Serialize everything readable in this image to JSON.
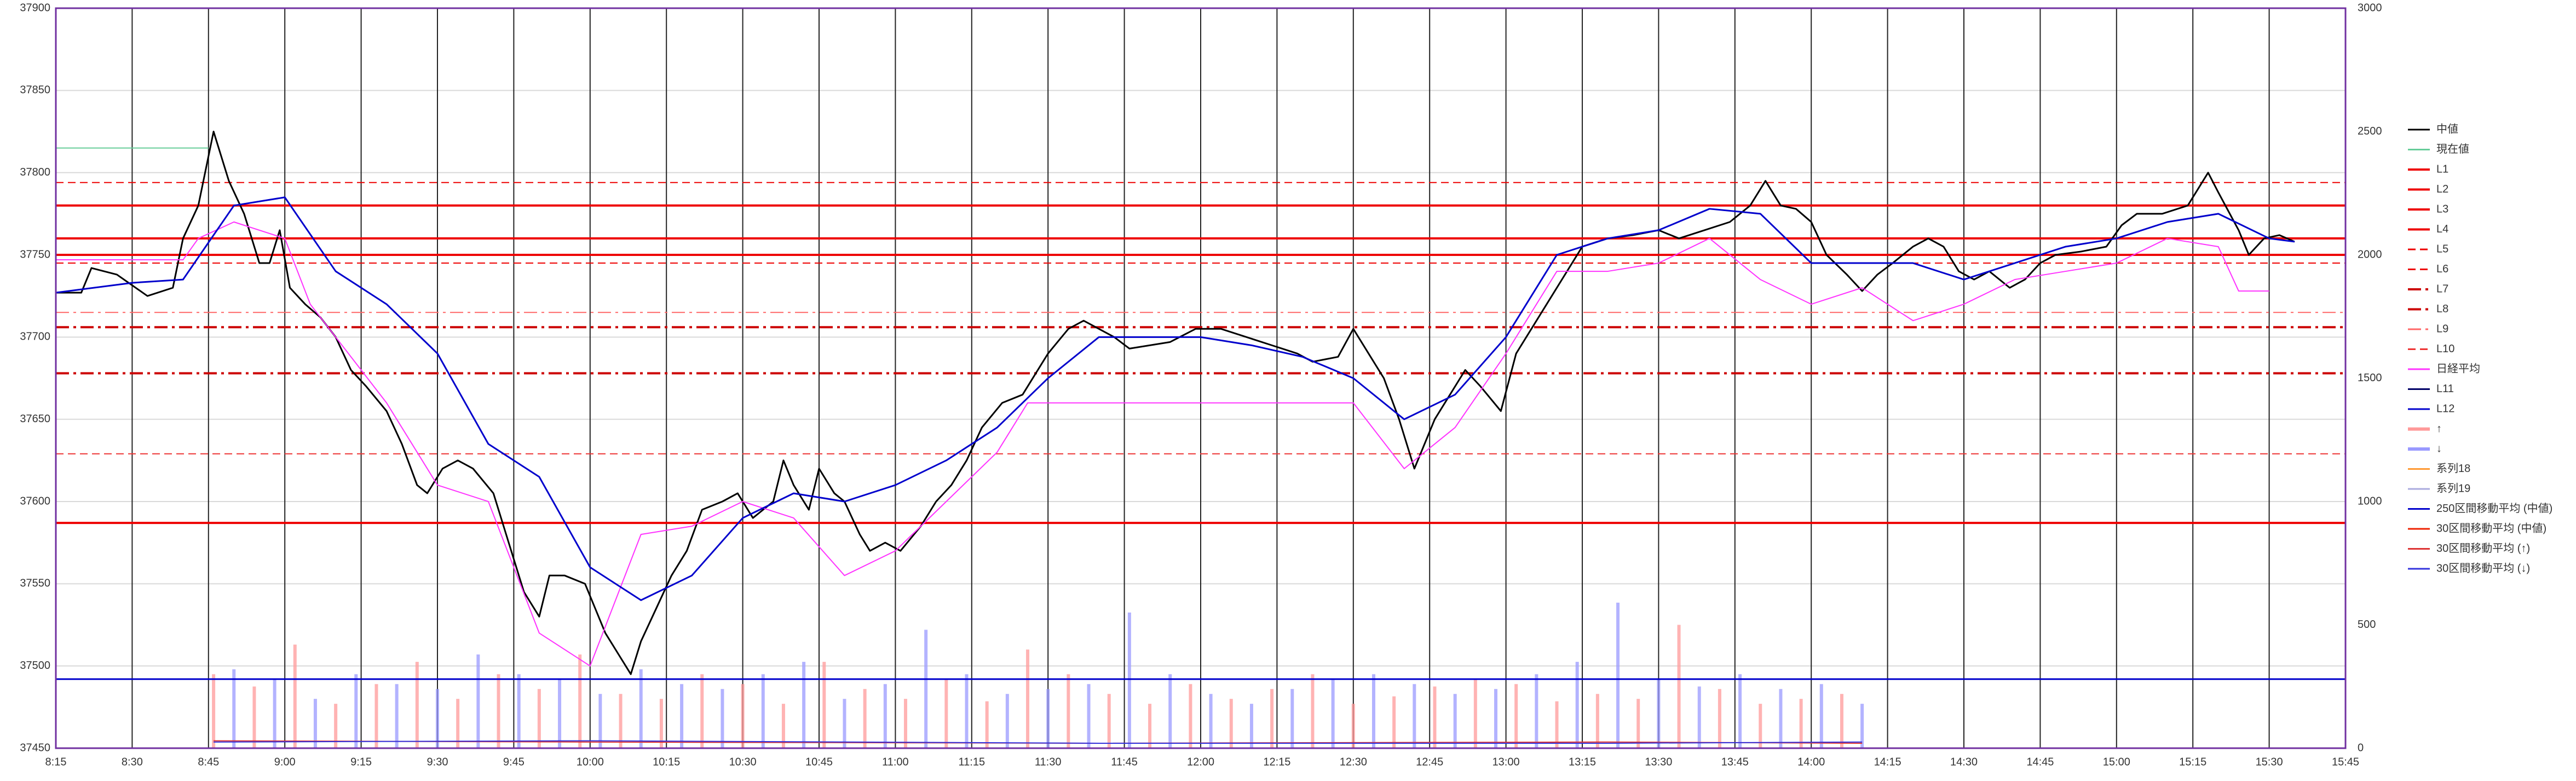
{
  "chart_data": {
    "type": "line",
    "xlim": [
      495,
      945
    ],
    "xticks": [
      {
        "value": 495,
        "label": "8:15"
      },
      {
        "value": 510,
        "label": "8:30"
      },
      {
        "value": 525,
        "label": "8:45"
      },
      {
        "value": 540,
        "label": "9:00"
      },
      {
        "value": 555,
        "label": "9:15"
      },
      {
        "value": 570,
        "label": "9:30"
      },
      {
        "value": 585,
        "label": "9:45"
      },
      {
        "value": 600,
        "label": "10:00"
      },
      {
        "value": 615,
        "label": "10:15"
      },
      {
        "value": 630,
        "label": "10:30"
      },
      {
        "value": 645,
        "label": "10:45"
      },
      {
        "value": 660,
        "label": "11:00"
      },
      {
        "value": 675,
        "label": "11:15"
      },
      {
        "value": 690,
        "label": "11:30"
      },
      {
        "value": 705,
        "label": "11:45"
      },
      {
        "value": 720,
        "label": "12:00"
      },
      {
        "value": 735,
        "label": "12:15"
      },
      {
        "value": 750,
        "label": "12:30"
      },
      {
        "value": 765,
        "label": "12:45"
      },
      {
        "value": 780,
        "label": "13:00"
      },
      {
        "value": 795,
        "label": "13:15"
      },
      {
        "value": 810,
        "label": "13:30"
      },
      {
        "value": 825,
        "label": "13:45"
      },
      {
        "value": 840,
        "label": "14:00"
      },
      {
        "value": 855,
        "label": "14:15"
      },
      {
        "value": 870,
        "label": "14:30"
      },
      {
        "value": 885,
        "label": "14:45"
      },
      {
        "value": 900,
        "label": "15:00"
      },
      {
        "value": 915,
        "label": "15:15"
      },
      {
        "value": 930,
        "label": "15:30"
      },
      {
        "value": 945,
        "label": "15:45"
      }
    ],
    "ylim": [
      37450,
      37900
    ],
    "yticks": [
      37450,
      37500,
      37550,
      37600,
      37650,
      37700,
      37750,
      37800,
      37850,
      37900
    ],
    "y2lim": [
      0,
      3000
    ],
    "y2ticks": [
      0,
      500,
      1000,
      1500,
      2000,
      2500,
      3000
    ],
    "grid": true,
    "legend": "right",
    "series": [
      {
        "name": "中値",
        "kind": "line",
        "color": "#000000",
        "width": 3,
        "style": "solid",
        "x": [
          495,
          500,
          502,
          507,
          513,
          518,
          520,
          523,
          526,
          529,
          532,
          535,
          537,
          539,
          541,
          544,
          547,
          550,
          553,
          556,
          560,
          563,
          566,
          568,
          571,
          574,
          577,
          581,
          585,
          587,
          590,
          592,
          595,
          599,
          601,
          603,
          606,
          608,
          610,
          613,
          616,
          619,
          622,
          626,
          629,
          632,
          636,
          638,
          640,
          643,
          645,
          648,
          650,
          653,
          655,
          658,
          661,
          665,
          668,
          671,
          674,
          677,
          681,
          685,
          688,
          690,
          694,
          697,
          700,
          703,
          706,
          710,
          714,
          719,
          724,
          729,
          734,
          739,
          742,
          747,
          750,
          753,
          756,
          759,
          762,
          766,
          769,
          772,
          775,
          779,
          782,
          785,
          789,
          792,
          795,
          800,
          805,
          810,
          814,
          819,
          824,
          828,
          831,
          834,
          837,
          840,
          843,
          847,
          850,
          853,
          856,
          860,
          863,
          866,
          869,
          872,
          875,
          879,
          882,
          885,
          888,
          893,
          898,
          901,
          904,
          909,
          914,
          918,
          920,
          924,
          926,
          929,
          932,
          935
        ],
        "values": [
          37727,
          37727,
          37742,
          37738,
          37725,
          37730,
          37760,
          37780,
          37825,
          37795,
          37775,
          37745,
          37745,
          37765,
          37730,
          37720,
          37712,
          37700,
          37680,
          37670,
          37655,
          37635,
          37610,
          37605,
          37620,
          37625,
          37620,
          37605,
          37565,
          37545,
          37530,
          37555,
          37555,
          37550,
          37535,
          37520,
          37505,
          37495,
          37515,
          37535,
          37555,
          37570,
          37595,
          37600,
          37605,
          37590,
          37600,
          37625,
          37610,
          37595,
          37620,
          37605,
          37600,
          37580,
          37570,
          37575,
          37570,
          37585,
          37600,
          37610,
          37625,
          37645,
          37660,
          37665,
          37680,
          37690,
          37705,
          37710,
          37705,
          37700,
          37693,
          37695,
          37697,
          37705,
          37705,
          37700,
          37695,
          37690,
          37685,
          37688,
          37705,
          37690,
          37675,
          37650,
          37620,
          37650,
          37665,
          37680,
          37670,
          37655,
          37690,
          37705,
          37725,
          37740,
          37755,
          37760,
          37762,
          37765,
          37760,
          37765,
          37770,
          37780,
          37795,
          37780,
          37778,
          37770,
          37750,
          37738,
          37728,
          37738,
          37745,
          37755,
          37760,
          37755,
          37740,
          37735,
          37740,
          37730,
          37735,
          37745,
          37750,
          37752,
          37755,
          37768,
          37775,
          37775,
          37780,
          37800,
          37788,
          37765,
          37750,
          37760,
          37762,
          37758
        ]
      },
      {
        "name": "現在値",
        "kind": "line",
        "color": "#66cc99",
        "width": 2,
        "style": "solid",
        "x": [
          495,
          525
        ],
        "values": [
          37815,
          37815
        ]
      },
      {
        "name": "L1",
        "kind": "hline",
        "color": "#ee0000",
        "width": 4,
        "style": "solid",
        "value": 37780
      },
      {
        "name": "L2",
        "kind": "hline",
        "color": "#ee0000",
        "width": 4,
        "style": "solid",
        "value": 37760
      },
      {
        "name": "L3",
        "kind": "hline",
        "color": "#ee0000",
        "width": 4,
        "style": "solid",
        "value": 37750
      },
      {
        "name": "L4",
        "kind": "hline",
        "color": "#ee0000",
        "width": 4,
        "style": "solid",
        "value": 37587
      },
      {
        "name": "L5",
        "kind": "hline",
        "color": "#ee0000",
        "width": 2,
        "style": "dashed",
        "value": 37794
      },
      {
        "name": "L6",
        "kind": "hline",
        "color": "#ee0000",
        "width": 2,
        "style": "dashed",
        "value": 37745
      },
      {
        "name": "L7",
        "kind": "hline",
        "color": "#cc0000",
        "width": 4,
        "style": "dashdot",
        "value": 37706
      },
      {
        "name": "L8",
        "kind": "hline",
        "color": "#cc0000",
        "width": 4,
        "style": "dashdot",
        "value": 37678
      },
      {
        "name": "L9",
        "kind": "hline",
        "color": "#ff6666",
        "width": 2,
        "style": "dashdot",
        "value": 37715
      },
      {
        "name": "L10",
        "kind": "hline",
        "color": "#ee3333",
        "width": 2,
        "style": "dashed",
        "value": 37629
      },
      {
        "name": "日経平均",
        "kind": "line",
        "color": "#ff33ff",
        "width": 2,
        "style": "solid",
        "x": [
          495,
          520,
          523,
          530,
          540,
          545,
          550,
          560,
          570,
          580,
          590,
          600,
          610,
          620,
          630,
          640,
          650,
          660,
          670,
          680,
          685,
          686,
          700,
          720,
          740,
          750,
          760,
          770,
          780,
          790,
          800,
          810,
          820,
          830,
          840,
          850,
          860,
          870,
          880,
          890,
          900,
          910,
          920,
          924,
          930
        ],
        "values": [
          37747,
          37747,
          37760,
          37770,
          37760,
          37720,
          37700,
          37660,
          37610,
          37600,
          37520,
          37500,
          37580,
          37585,
          37600,
          37590,
          37555,
          37570,
          37600,
          37630,
          37655,
          37660,
          37660,
          37660,
          37660,
          37660,
          37620,
          37645,
          37690,
          37740,
          37740,
          37745,
          37760,
          37735,
          37720,
          37730,
          37710,
          37720,
          37735,
          37740,
          37745,
          37760,
          37755,
          37728,
          37728
        ]
      },
      {
        "name": "L11",
        "kind": "hline",
        "color": "#000066",
        "width": 3,
        "style": "solid",
        "value": null
      },
      {
        "name": "L12",
        "kind": "hline",
        "color": "#0000cc",
        "width": 3,
        "style": "solid",
        "value": 37492
      },
      {
        "name": "↑",
        "kind": "bar",
        "axis": "y2",
        "color": "#ff9999",
        "width": 6,
        "style": "solid",
        "x": [
          526,
          534,
          542,
          550,
          558,
          566,
          574,
          582,
          590,
          598,
          606,
          614,
          622,
          630,
          638,
          646,
          654,
          662,
          670,
          678,
          686,
          694,
          702,
          710,
          718,
          726,
          734,
          742,
          750,
          758,
          766,
          774,
          782,
          790,
          798,
          806,
          814,
          822,
          830,
          838,
          846
        ],
        "values": [
          300,
          250,
          420,
          180,
          260,
          350,
          200,
          300,
          240,
          380,
          220,
          200,
          300,
          260,
          180,
          350,
          240,
          200,
          280,
          190,
          400,
          300,
          220,
          180,
          260,
          200,
          240,
          300,
          180,
          210,
          250,
          280,
          260,
          190,
          220,
          200,
          500,
          240,
          180,
          200,
          220
        ]
      },
      {
        "name": "↓",
        "kind": "bar",
        "axis": "y2",
        "color": "#9999ff",
        "width": 6,
        "style": "solid",
        "x": [
          530,
          538,
          546,
          554,
          562,
          570,
          578,
          586,
          594,
          602,
          610,
          618,
          626,
          634,
          642,
          650,
          658,
          666,
          674,
          682,
          690,
          698,
          706,
          714,
          722,
          730,
          738,
          746,
          754,
          762,
          770,
          778,
          786,
          794,
          802,
          810,
          818,
          826,
          834,
          842,
          850
        ],
        "values": [
          320,
          280,
          200,
          300,
          260,
          240,
          380,
          300,
          280,
          220,
          320,
          260,
          240,
          300,
          350,
          200,
          260,
          480,
          300,
          220,
          240,
          260,
          550,
          300,
          220,
          180,
          240,
          280,
          300,
          260,
          220,
          240,
          300,
          350,
          590,
          280,
          250,
          300,
          240,
          260,
          180
        ]
      },
      {
        "name": "系列18",
        "kind": "line",
        "color": "#ff9933",
        "width": 2,
        "style": "solid",
        "x": [],
        "values": []
      },
      {
        "name": "系列19",
        "kind": "line",
        "color": "#aaaadd",
        "width": 2,
        "style": "solid",
        "x": [],
        "values": []
      },
      {
        "name": "250区間移動平均 (中値)",
        "kind": "line",
        "color": "#0000cc",
        "width": 3,
        "style": "solid",
        "x": [
          495,
          510,
          520,
          530,
          540,
          550,
          560,
          570,
          580,
          590,
          600,
          610,
          620,
          630,
          640,
          650,
          660,
          670,
          680,
          690,
          700,
          710,
          720,
          730,
          740,
          750,
          760,
          770,
          780,
          790,
          800,
          810,
          820,
          830,
          840,
          850,
          860,
          870,
          880,
          890,
          900,
          910,
          920,
          930,
          935
        ],
        "values": [
          37727,
          37733,
          37735,
          37780,
          37785,
          37740,
          37720,
          37690,
          37635,
          37615,
          37560,
          37540,
          37555,
          37590,
          37605,
          37600,
          37610,
          37625,
          37645,
          37675,
          37700,
          37700,
          37700,
          37695,
          37688,
          37675,
          37650,
          37665,
          37700,
          37750,
          37760,
          37765,
          37778,
          37775,
          37745,
          37745,
          37745,
          37735,
          37745,
          37755,
          37760,
          37770,
          37775,
          37760,
          37758
        ]
      },
      {
        "name": "30区間移動平均 (中値)",
        "kind": "line",
        "color": "#ee2200",
        "width": 2,
        "style": "solid",
        "x": [],
        "values": []
      },
      {
        "name": "30区間移動平均 (↑)",
        "kind": "line",
        "axis": "y2",
        "color": "#dd3333",
        "width": 2,
        "style": "solid",
        "x": [
          526,
          600,
          700,
          800,
          850
        ],
        "values": [
          30,
          25,
          20,
          25,
          20
        ]
      },
      {
        "name": "30区間移動平均 (↓)",
        "kind": "line",
        "axis": "y2",
        "color": "#3333dd",
        "width": 2,
        "style": "solid",
        "x": [
          526,
          600,
          700,
          800,
          850
        ],
        "values": [
          25,
          30,
          20,
          20,
          25
        ]
      }
    ]
  }
}
